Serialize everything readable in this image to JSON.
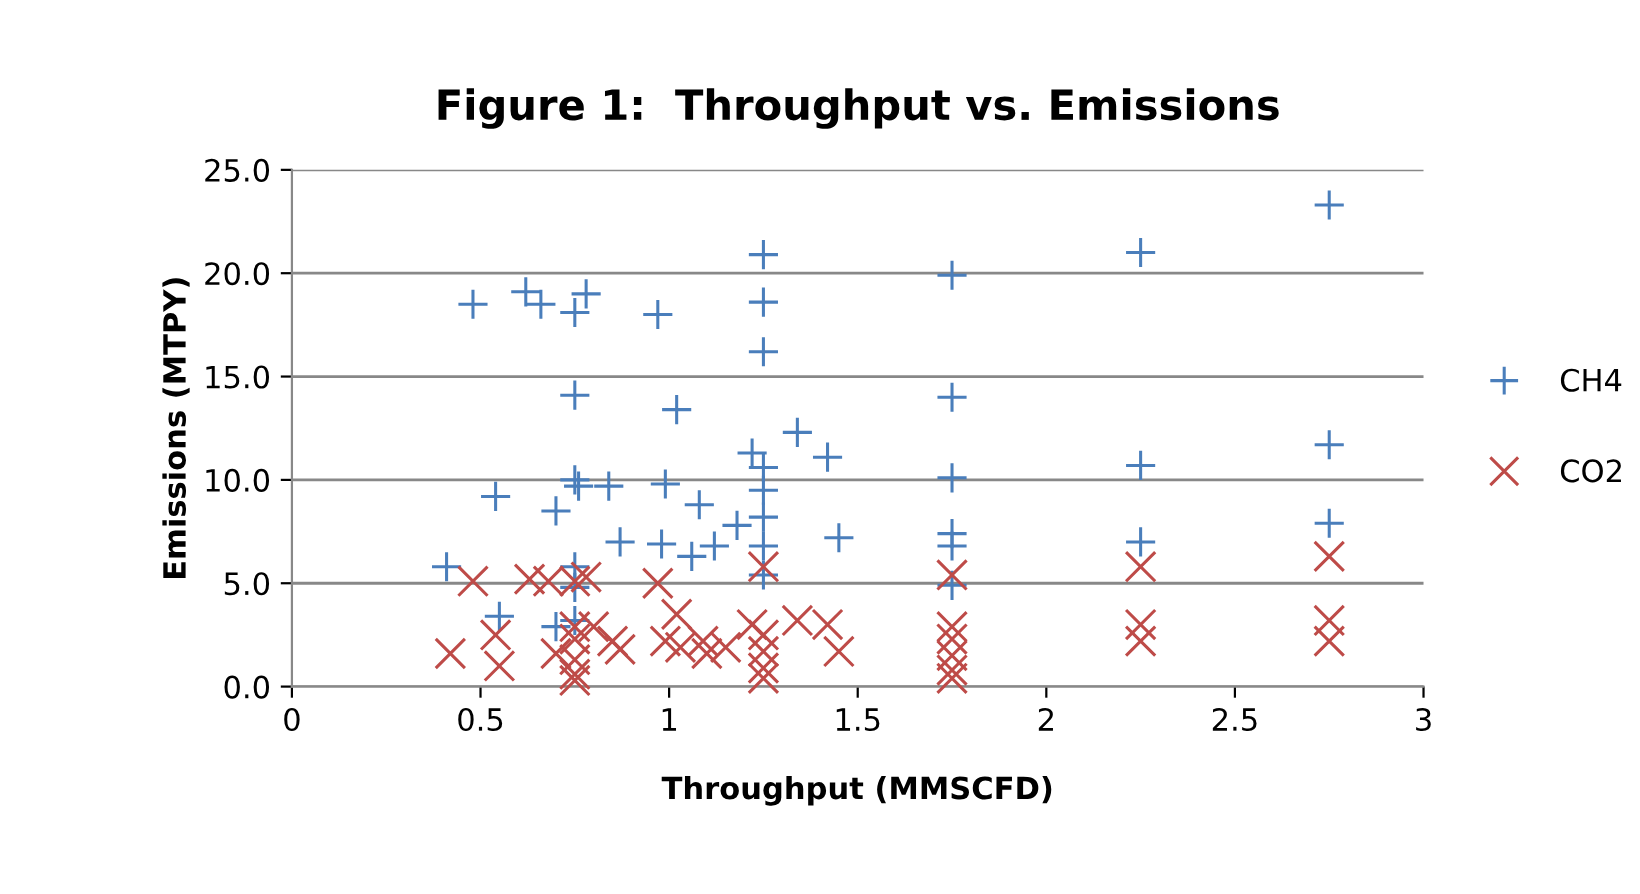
{
  "chart_data": {
    "type": "scatter",
    "title": "Figure 1:  Throughput vs. Emissions",
    "xlabel": "Throughput (MMSCFD)",
    "ylabel": "Emissions (MTPY)",
    "xlim": [
      0,
      3
    ],
    "xticks": [
      0,
      0.5,
      1,
      1.5,
      2,
      2.5,
      3
    ],
    "ylim": [
      0,
      25
    ],
    "yticks": [
      {
        "value": 0,
        "label": "0.0"
      },
      {
        "value": 5,
        "label": "5.0"
      },
      {
        "value": 10,
        "label": "10.0"
      },
      {
        "value": 15,
        "label": "15.0"
      },
      {
        "value": 20,
        "label": "20.0"
      },
      {
        "value": 25,
        "label": "25.0"
      }
    ],
    "grid": "y",
    "legend": "right",
    "series": [
      {
        "name": "CH4",
        "color": "#4a7ebb",
        "marker": "cross",
        "x": [
          0.48,
          0.62,
          0.66,
          0.78,
          0.75,
          0.97,
          1.25,
          1.25,
          1.25,
          0.75,
          1.02,
          1.34,
          1.42,
          1.22,
          1.25,
          1.25,
          1.25,
          1.25,
          1.25,
          0.76,
          0.84,
          0.54,
          0.7,
          0.75,
          0.99,
          1.08,
          1.18,
          0.87,
          0.98,
          1.06,
          1.12,
          1.45,
          0.41,
          0.75,
          0.75,
          0.55,
          0.7,
          0.75,
          1.75,
          1.75,
          1.75,
          1.75,
          1.75,
          1.75,
          2.25,
          2.25,
          2.25,
          2.75,
          2.75,
          2.75
        ],
        "values": [
          18.5,
          19.1,
          18.5,
          19.0,
          18.1,
          18.0,
          20.9,
          18.6,
          16.2,
          14.1,
          13.4,
          12.3,
          11.1,
          11.3,
          10.6,
          9.5,
          8.2,
          6.8,
          5.4,
          9.7,
          9.7,
          9.2,
          8.5,
          10.0,
          9.8,
          8.8,
          7.8,
          7.0,
          6.9,
          6.3,
          6.8,
          7.2,
          5.8,
          5.8,
          4.8,
          3.4,
          2.9,
          3.2,
          19.9,
          14.0,
          10.1,
          7.4,
          6.8,
          4.9,
          21.0,
          10.7,
          7.0,
          23.3,
          11.7,
          7.9
        ]
      },
      {
        "name": "CO2",
        "color": "#be4b48",
        "marker": "x",
        "x": [
          0.42,
          0.48,
          0.55,
          0.54,
          0.63,
          0.68,
          0.7,
          0.75,
          0.78,
          0.75,
          0.75,
          0.75,
          0.75,
          0.75,
          0.8,
          0.85,
          0.87,
          0.97,
          1.02,
          0.99,
          1.03,
          1.09,
          1.1,
          1.15,
          1.22,
          1.25,
          1.25,
          1.25,
          1.25,
          1.25,
          1.34,
          1.42,
          1.45,
          1.75,
          1.75,
          1.75,
          1.75,
          1.75,
          1.75,
          2.25,
          2.25,
          2.25,
          2.75,
          2.75,
          2.75
        ],
        "values": [
          1.6,
          5.1,
          1.0,
          2.5,
          5.2,
          5.1,
          1.6,
          5.1,
          5.3,
          2.9,
          2.3,
          1.3,
          0.6,
          0.3,
          2.9,
          2.2,
          1.8,
          5.0,
          3.5,
          2.2,
          1.9,
          2.2,
          1.6,
          1.9,
          3.0,
          2.5,
          1.7,
          0.9,
          0.4,
          5.8,
          3.2,
          3.0,
          1.7,
          5.4,
          2.9,
          2.3,
          1.5,
          0.8,
          0.4,
          5.8,
          3.0,
          2.2,
          6.3,
          3.2,
          2.2
        ]
      }
    ]
  }
}
